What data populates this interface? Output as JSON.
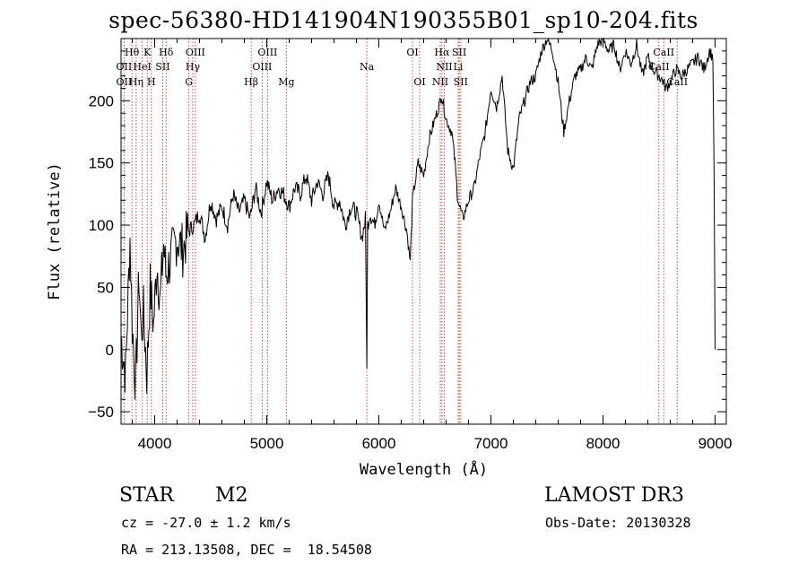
{
  "page": {
    "title": "spec-56380-HD141904N190355B01_sp10-204.fits"
  },
  "chart_data": {
    "type": "line",
    "title": "spec-56380-HD141904N190355B01_sp10-204.fits",
    "xlabel": "Wavelength (Å)",
    "ylabel": "Flux (relative)",
    "xlim": [
      3700,
      9100
    ],
    "ylim": [
      -60,
      250
    ],
    "xticks": [
      4000,
      5000,
      6000,
      7000,
      8000,
      9000
    ],
    "yticks": [
      -50,
      0,
      50,
      100,
      150,
      200
    ],
    "grid": false,
    "series": [
      {
        "name": "spectrum",
        "x": [
          3700,
          3740,
          3780,
          3800,
          3830,
          3860,
          3880,
          3900,
          3930,
          3960,
          3990,
          4020,
          4050,
          4080,
          4100,
          4150,
          4200,
          4250,
          4300,
          4350,
          4400,
          4450,
          4500,
          4550,
          4600,
          4650,
          4700,
          4750,
          4800,
          4850,
          4900,
          4950,
          5000,
          5050,
          5100,
          5150,
          5200,
          5250,
          5300,
          5350,
          5400,
          5450,
          5500,
          5550,
          5600,
          5650,
          5700,
          5750,
          5800,
          5850,
          5880,
          5893,
          5900,
          5920,
          5960,
          6000,
          6050,
          6100,
          6150,
          6200,
          6250,
          6280,
          6300,
          6350,
          6400,
          6450,
          6500,
          6550,
          6560,
          6600,
          6650,
          6680,
          6700,
          6720,
          6750,
          6800,
          6850,
          6900,
          6950,
          7000,
          7050,
          7100,
          7150,
          7200,
          7250,
          7300,
          7350,
          7400,
          7450,
          7500,
          7550,
          7600,
          7650,
          7700,
          7750,
          7800,
          7850,
          7900,
          7950,
          8000,
          8050,
          8100,
          8150,
          8200,
          8250,
          8300,
          8350,
          8400,
          8450,
          8500,
          8540,
          8560,
          8600,
          8650,
          8700,
          8750,
          8800,
          8850,
          8900,
          8950,
          8980,
          8990,
          9000
        ],
        "values": [
          10,
          -20,
          90,
          20,
          -30,
          60,
          10,
          30,
          -20,
          50,
          20,
          70,
          40,
          85,
          60,
          75,
          90,
          80,
          95,
          100,
          110,
          90,
          120,
          105,
          115,
          100,
          125,
          110,
          120,
          105,
          130,
          110,
          135,
          120,
          130,
          125,
          115,
          130,
          125,
          140,
          120,
          135,
          125,
          140,
          115,
          120,
          100,
          115,
          110,
          90,
          105,
          -10,
          100,
          110,
          100,
          120,
          95,
          110,
          130,
          115,
          95,
          70,
          120,
          150,
          140,
          170,
          185,
          200,
          205,
          185,
          175,
          150,
          125,
          115,
          105,
          120,
          130,
          155,
          175,
          210,
          195,
          220,
          160,
          145,
          185,
          200,
          215,
          220,
          240,
          250,
          240,
          215,
          175,
          200,
          220,
          225,
          235,
          225,
          245,
          250,
          240,
          245,
          225,
          240,
          230,
          245,
          220,
          235,
          225,
          220,
          215,
          210,
          215,
          225,
          220,
          225,
          230,
          235,
          225,
          240,
          235,
          150,
          0
        ]
      }
    ],
    "line_labels": [
      {
        "text": "Hθ",
        "wl": 3797,
        "row": 1
      },
      {
        "text": "K",
        "wl": 3934,
        "row": 1
      },
      {
        "text": "Hδ",
        "wl": 4102,
        "row": 1
      },
      {
        "text": "OIII",
        "wl": 4363,
        "row": 1
      },
      {
        "text": "OIII",
        "wl": 5007,
        "row": 1
      },
      {
        "text": "Na",
        "wl": 5893,
        "row": 2
      },
      {
        "text": "OI",
        "wl": 6300,
        "row": 1
      },
      {
        "text": "Hα",
        "wl": 6563,
        "row": 1
      },
      {
        "text": "SII",
        "wl": 6717,
        "row": 1
      },
      {
        "text": "CaII",
        "wl": 8542,
        "row": 1
      },
      {
        "text": "OII",
        "wl": 3727,
        "row": 2
      },
      {
        "text": "HeI",
        "wl": 3889,
        "row": 2
      },
      {
        "text": "SII",
        "wl": 4072,
        "row": 2
      },
      {
        "text": "Hγ",
        "wl": 4340,
        "row": 2
      },
      {
        "text": "OIII",
        "wl": 4959,
        "row": 2
      },
      {
        "text": "NII",
        "wl": 6584,
        "row": 2
      },
      {
        "text": "Li",
        "wl": 6708,
        "row": 2
      },
      {
        "text": "CaII",
        "wl": 8498,
        "row": 2
      },
      {
        "text": "OII",
        "wl": 3727,
        "row": 3
      },
      {
        "text": "Hη",
        "wl": 3835,
        "row": 3
      },
      {
        "text": "H",
        "wl": 3970,
        "row": 3
      },
      {
        "text": "G",
        "wl": 4305,
        "row": 3
      },
      {
        "text": "Hβ",
        "wl": 4861,
        "row": 3
      },
      {
        "text": "Mg",
        "wl": 5175,
        "row": 3
      },
      {
        "text": "OI",
        "wl": 6364,
        "row": 3
      },
      {
        "text": "NII",
        "wl": 6548,
        "row": 3
      },
      {
        "text": "SII",
        "wl": 6731,
        "row": 3
      },
      {
        "text": "CaII",
        "wl": 8662,
        "row": 3
      }
    ],
    "marker_lines": [
      3727,
      3797,
      3835,
      3889,
      3934,
      3970,
      4072,
      4102,
      4305,
      4340,
      4363,
      4861,
      4959,
      5007,
      5175,
      5893,
      6300,
      6364,
      6548,
      6563,
      6584,
      6708,
      6717,
      6731,
      8498,
      8542,
      8662
    ]
  },
  "info": {
    "object_class": "STAR",
    "subclass": "M2",
    "cz": "cz = -27.0 ± 1.2 km/s",
    "coords": "RA = 213.13508, DEC =  18.54508",
    "survey": "LAMOST DR3",
    "obs_date": "Obs-Date: 20130328"
  }
}
